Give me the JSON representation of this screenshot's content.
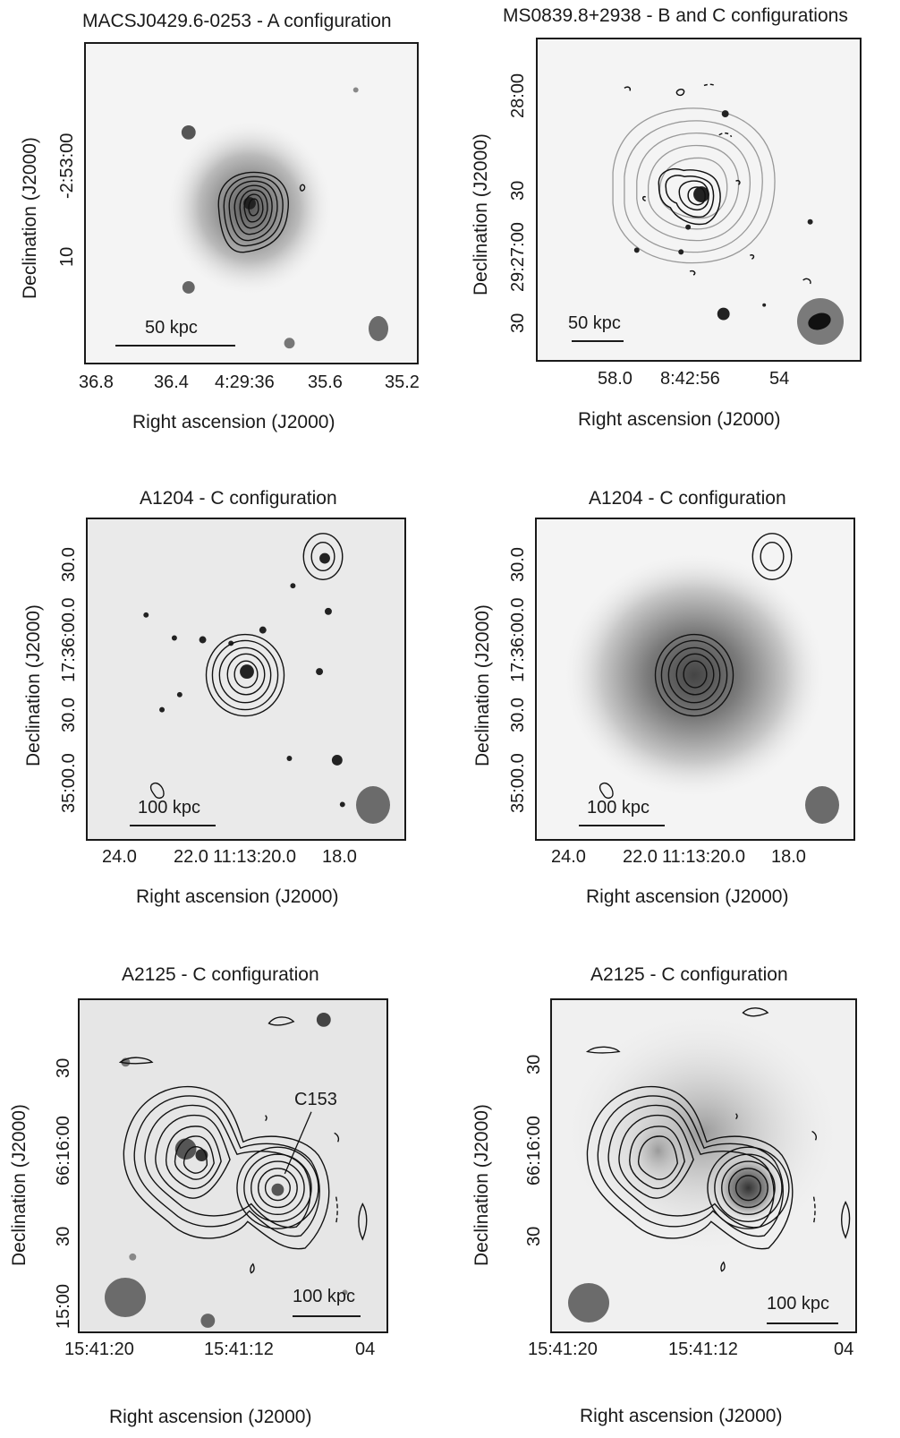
{
  "panels": [
    {
      "title": "MACSJ0429.6-0253 - A configuration",
      "xlabel": "Right ascension (J2000)",
      "ylabel": "Declination (J2000)",
      "xticks": [
        "36.8",
        "36.4",
        "4:29:36",
        "35.6",
        "35.2"
      ],
      "yticks": [
        "-2:53:00",
        "10"
      ],
      "scalebar": "50 kpc"
    },
    {
      "title": "MS0839.8+2938 - B and C configurations",
      "xlabel": "Right ascension (J2000)",
      "ylabel": "Declination (J2000)",
      "xticks": [
        "58.0",
        "8:42:56",
        "54"
      ],
      "yticks": [
        "28:00",
        "30",
        "29:27:00",
        "30"
      ],
      "scalebar": "50 kpc"
    },
    {
      "title": "A1204 - C configuration",
      "xlabel": "Right ascension (J2000)",
      "ylabel": "Declination (J2000)",
      "xticks": [
        "24.0",
        "22.0",
        "11:13:20.0",
        "18.0"
      ],
      "yticks": [
        "30.0",
        "17:36:00.0",
        "30.0",
        "35:00.0"
      ],
      "scalebar": "100 kpc"
    },
    {
      "title": "A1204 - C configuration",
      "xlabel": "Right ascension (J2000)",
      "ylabel": "Declination (J2000)",
      "xticks": [
        "24.0",
        "22.0",
        "11:13:20.0",
        "18.0"
      ],
      "yticks": [
        "30.0",
        "17:36:00.0",
        "30.0",
        "35:00.0"
      ],
      "scalebar": "100 kpc"
    },
    {
      "title": "A2125 - C configuration",
      "xlabel": "Right ascension (J2000)",
      "ylabel": "Declination (J2000)",
      "xticks": [
        "15:41:20",
        "15:41:12",
        "04"
      ],
      "yticks": [
        "30",
        "66:16:00",
        "30",
        "15:00"
      ],
      "scalebar": "100 kpc",
      "annotation": "C153"
    },
    {
      "title": "A2125 - C configuration",
      "xlabel": "Right ascension (J2000)",
      "ylabel": "Declination (J2000)",
      "xticks": [
        "15:41:20",
        "15:41:12",
        "04"
      ],
      "yticks": [
        "30",
        "66:16:00",
        "30"
      ],
      "scalebar": "100 kpc"
    }
  ]
}
